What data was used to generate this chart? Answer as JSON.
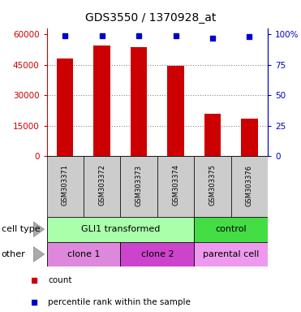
{
  "title": "GDS3550 / 1370928_at",
  "samples": [
    "GSM303371",
    "GSM303372",
    "GSM303373",
    "GSM303374",
    "GSM303375",
    "GSM303376"
  ],
  "counts": [
    48000,
    54500,
    53500,
    44500,
    21000,
    18500
  ],
  "percentile_ranks": [
    99,
    99,
    99,
    99,
    97,
    98
  ],
  "bar_color": "#cc0000",
  "dot_color": "#0000cc",
  "left_yticks": [
    0,
    15000,
    30000,
    45000,
    60000
  ],
  "left_ylim": [
    0,
    63000
  ],
  "right_yticks": [
    0,
    25,
    50,
    75,
    100
  ],
  "right_ylim": [
    0,
    105
  ],
  "cell_type_groups": [
    {
      "label": "GLI1 transformed",
      "start": 0,
      "end": 3,
      "color": "#aaffaa"
    },
    {
      "label": "control",
      "start": 4,
      "end": 5,
      "color": "#44dd44"
    }
  ],
  "other_groups": [
    {
      "label": "clone 1",
      "start": 0,
      "end": 1,
      "color": "#dd88dd"
    },
    {
      "label": "clone 2",
      "start": 2,
      "end": 3,
      "color": "#cc44cc"
    },
    {
      "label": "parental cell",
      "start": 4,
      "end": 5,
      "color": "#ee99ee"
    }
  ],
  "legend_count_color": "#cc0000",
  "legend_dot_color": "#0000cc",
  "xticklabel_bg": "#cccccc",
  "cell_type_label": "cell type",
  "other_label": "other"
}
